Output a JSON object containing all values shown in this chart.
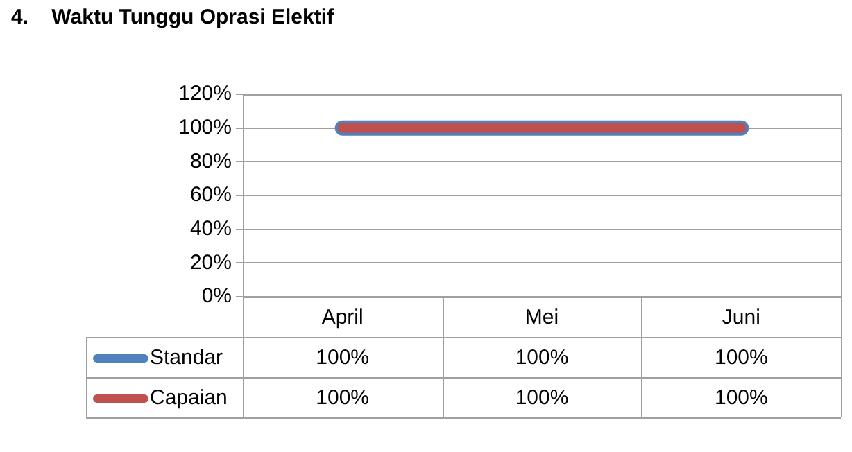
{
  "chart_data": {
    "type": "line",
    "title": "4.    Waktu Tunggu Oprasi Elektif",
    "categories": [
      "April",
      "Mei",
      "Juni"
    ],
    "series": [
      {
        "name": "Standar",
        "color": "#4f81bd",
        "values": [
          100,
          100,
          100
        ],
        "value_labels": [
          "100%",
          "100%",
          "100%"
        ]
      },
      {
        "name": "Capaian",
        "color": "#c0504d",
        "values": [
          100,
          100,
          100
        ],
        "value_labels": [
          "100%",
          "100%",
          "100%"
        ]
      }
    ],
    "ylim": [
      0,
      120
    ],
    "yticks": [
      {
        "value": 0,
        "label": "0%"
      },
      {
        "value": 20,
        "label": "20%"
      },
      {
        "value": 40,
        "label": "40%"
      },
      {
        "value": 60,
        "label": "60%"
      },
      {
        "value": 80,
        "label": "80%"
      },
      {
        "value": 100,
        "label": "100%"
      },
      {
        "value": 120,
        "label": "120%"
      }
    ],
    "grid": "y",
    "legend": "bottom",
    "marker": "none",
    "line_style": "solid"
  }
}
